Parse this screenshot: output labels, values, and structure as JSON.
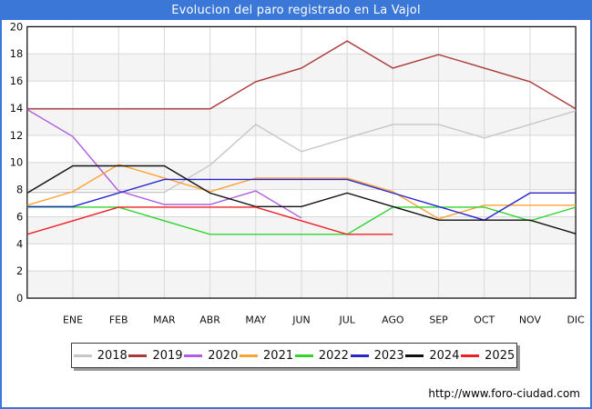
{
  "title": "Evolucion del paro registrado en La Vajol",
  "footer": {
    "url": "http://www.foro-ciudad.com"
  },
  "colors": {
    "frame_border": "#3b77d7",
    "title_bar_bg": "#3b77d7",
    "title_text": "#ffffff",
    "plot_border": "#000000",
    "gridline": "#d8d8d8",
    "band_fill": "#f4f4f4",
    "axis_text": "#111111"
  },
  "chart_data": {
    "type": "line",
    "title": "Evolucion del paro registrado en La Vajol",
    "xlabel": "",
    "ylabel": "",
    "x_axis": {
      "categories": [
        "ENE",
        "FEB",
        "MAR",
        "ABR",
        "MAY",
        "JUN",
        "JUL",
        "AGO",
        "SEP",
        "OCT",
        "NOV",
        "DIC"
      ],
      "note": "each series has a lead-in point drawn at the left axis edge before ENE"
    },
    "y_axis": {
      "min": 0,
      "max": 20,
      "step": 2
    },
    "grid": true,
    "legend_position": "bottom",
    "series": [
      {
        "name": "2018",
        "color": "#c6c6c6",
        "values": [
          8,
          8,
          8,
          8,
          10,
          13,
          11,
          12,
          13,
          13,
          12,
          13,
          14
        ]
      },
      {
        "name": "2019",
        "color": "#aa3939",
        "values": [
          14,
          14,
          14,
          14,
          14,
          16,
          17,
          19,
          17,
          18,
          17,
          16,
          14
        ]
      },
      {
        "name": "2020",
        "color": "#b05ce0",
        "values": [
          14,
          12,
          8,
          7,
          7,
          8,
          6,
          null,
          null,
          null,
          null,
          null,
          null
        ]
      },
      {
        "name": "2021",
        "color": "#ffa133",
        "values": [
          7,
          8,
          10,
          9,
          8,
          9,
          9,
          9,
          8,
          6,
          7,
          7,
          7
        ]
      },
      {
        "name": "2022",
        "color": "#2fd42f",
        "values": [
          7,
          7,
          7,
          6,
          5,
          5,
          5,
          5,
          7,
          7,
          7,
          6,
          7
        ]
      },
      {
        "name": "2023",
        "color": "#2626cc",
        "values": [
          7,
          7,
          8,
          9,
          9,
          9,
          9,
          9,
          8,
          7,
          6,
          8,
          8
        ]
      },
      {
        "name": "2024",
        "color": "#111111",
        "values": [
          8,
          10,
          10,
          10,
          8,
          7,
          7,
          8,
          7,
          6,
          6,
          6,
          5
        ]
      },
      {
        "name": "2025",
        "color": "#ed1f24",
        "values": [
          5,
          6,
          7,
          7,
          7,
          7,
          6,
          5,
          5,
          null,
          null,
          null,
          null
        ]
      }
    ]
  }
}
